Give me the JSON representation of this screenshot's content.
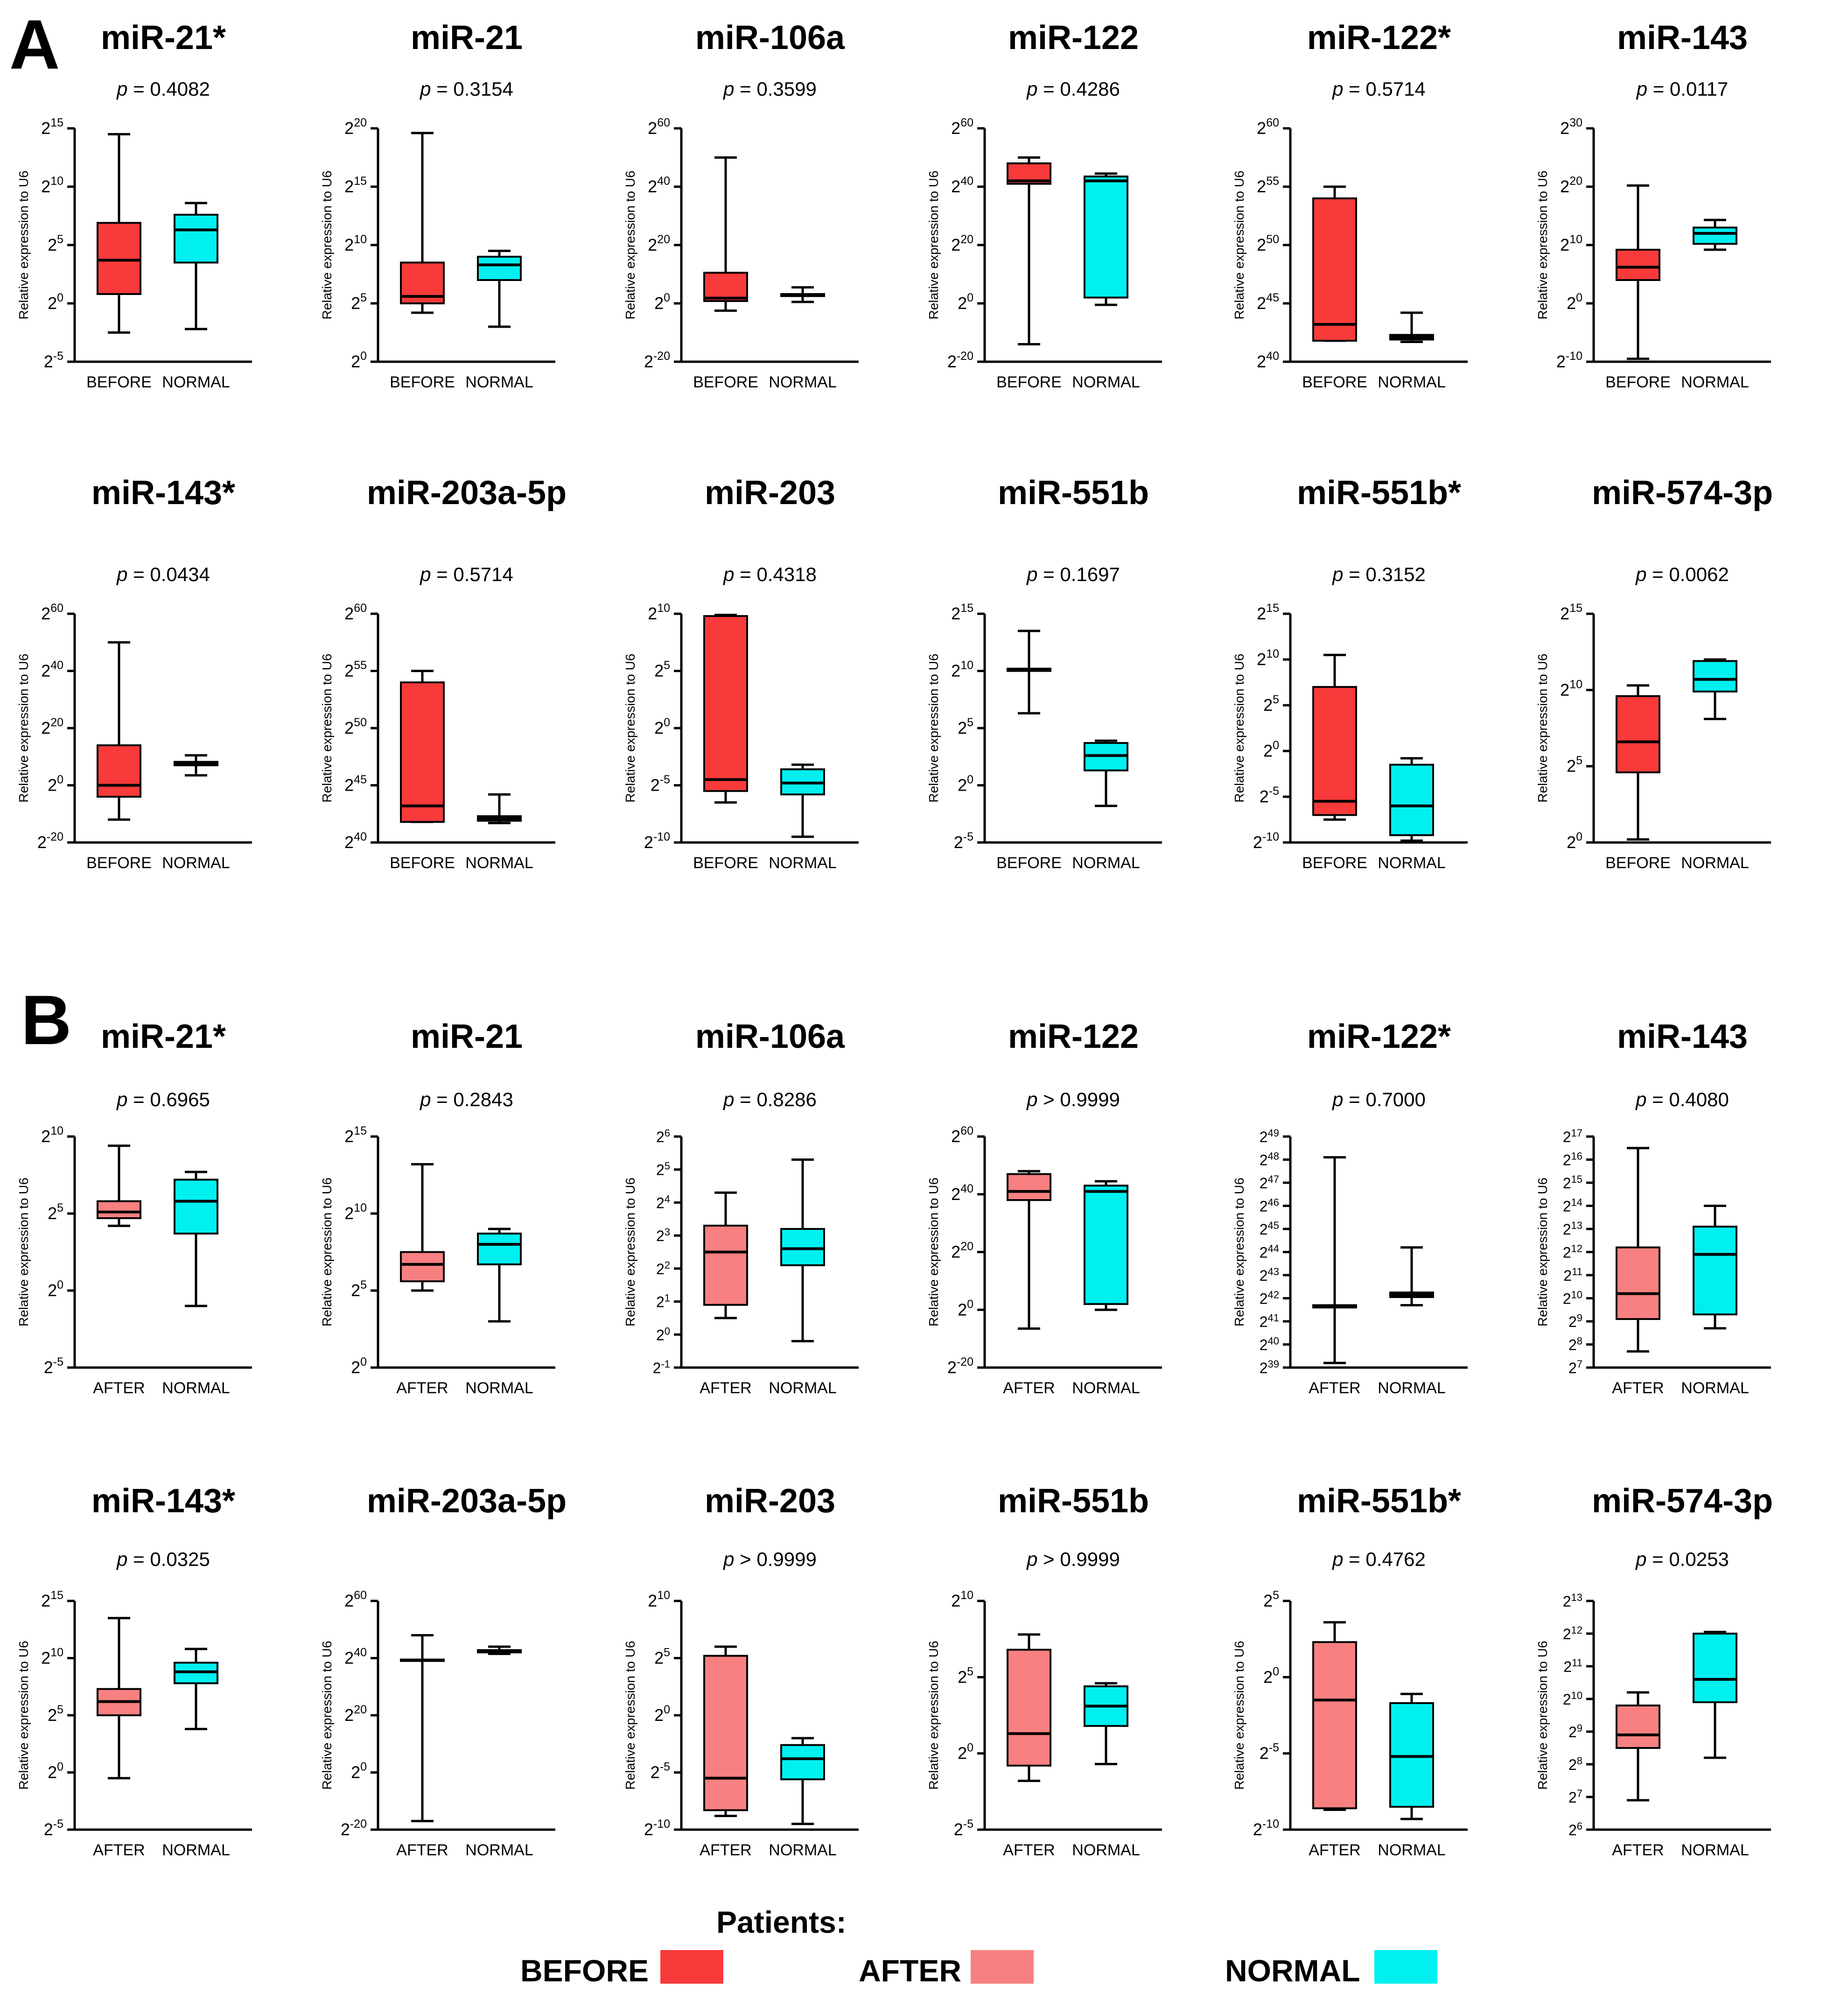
{
  "panel_labels": {
    "A": "A",
    "B": "B"
  },
  "y_axis_label": "Relative expression to U6",
  "legend": {
    "title": "Patients:",
    "items": [
      {
        "label": "BEFORE",
        "color": "#f83a3a"
      },
      {
        "label": "AFTER",
        "color": "#f88080"
      },
      {
        "label": "NORMAL",
        "color": "#00f0f0"
      }
    ]
  },
  "chart_data": [
    {
      "panel": "A",
      "type": "boxplot",
      "title": "miR-21*",
      "p_text": "p = 0.4082",
      "y_ticks": [
        -5,
        0,
        5,
        10,
        15
      ],
      "ylim": [
        -5,
        15
      ],
      "groups": [
        {
          "name": "BEFORE",
          "color": "#f83a3a",
          "min": -2.5,
          "q1": 0.8,
          "median": 3.7,
          "q3": 6.9,
          "max": 14.5
        },
        {
          "name": "NORMAL",
          "color": "#00f0f0",
          "min": -2.2,
          "q1": 3.5,
          "median": 6.3,
          "q3": 7.6,
          "max": 8.6
        }
      ]
    },
    {
      "panel": "A",
      "type": "boxplot",
      "title": "miR-21",
      "p_text": "p = 0.3154",
      "y_ticks": [
        0,
        5,
        10,
        15,
        20
      ],
      "ylim": [
        0,
        20
      ],
      "groups": [
        {
          "name": "BEFORE",
          "color": "#f83a3a",
          "min": 4.2,
          "q1": 5.0,
          "median": 5.6,
          "q3": 8.5,
          "max": 19.6
        },
        {
          "name": "NORMAL",
          "color": "#00f0f0",
          "min": 3.0,
          "q1": 7.0,
          "median": 8.3,
          "q3": 9.0,
          "max": 9.5
        }
      ]
    },
    {
      "panel": "A",
      "type": "boxplot",
      "title": "miR-106a",
      "p_text": "p = 0.3599",
      "y_ticks": [
        -20,
        0,
        20,
        40,
        60
      ],
      "ylim": [
        -20,
        60
      ],
      "groups": [
        {
          "name": "BEFORE",
          "color": "#f83a3a",
          "min": -2.5,
          "q1": 0.8,
          "median": 1.8,
          "q3": 10.5,
          "max": 50.0
        },
        {
          "name": "NORMAL",
          "color": "#00f0f0",
          "min": 0.5,
          "q1": 2.5,
          "median": 2.8,
          "q3": 3.2,
          "max": 5.5
        }
      ]
    },
    {
      "panel": "A",
      "type": "boxplot",
      "title": "miR-122",
      "p_text": "p = 0.4286",
      "y_ticks": [
        -20,
        0,
        20,
        40,
        60
      ],
      "ylim": [
        -20,
        60
      ],
      "groups": [
        {
          "name": "BEFORE",
          "color": "#f83a3a",
          "min": -14.0,
          "q1": 41.0,
          "median": 42.0,
          "q3": 48.0,
          "max": 50.0
        },
        {
          "name": "NORMAL",
          "color": "#00f0f0",
          "min": -0.5,
          "q1": 2.0,
          "median": 42.0,
          "q3": 43.5,
          "max": 44.5
        }
      ]
    },
    {
      "panel": "A",
      "type": "boxplot",
      "title": "miR-122*",
      "p_text": "p = 0.5714",
      "y_ticks": [
        40,
        45,
        50,
        55,
        60
      ],
      "ylim": [
        40,
        60
      ],
      "groups": [
        {
          "name": "BEFORE",
          "color": "#f83a3a",
          "min": 41.8,
          "q1": 41.8,
          "median": 43.2,
          "q3": 54.0,
          "max": 55.0
        },
        {
          "name": "NORMAL",
          "color": "#00f0f0",
          "min": 41.7,
          "q1": 41.9,
          "median": 42.1,
          "q3": 42.3,
          "max": 44.2
        }
      ]
    },
    {
      "panel": "A",
      "type": "boxplot",
      "title": "miR-143",
      "p_text": "p = 0.0117",
      "y_ticks": [
        -10,
        0,
        10,
        20,
        30
      ],
      "ylim": [
        -10,
        30
      ],
      "groups": [
        {
          "name": "BEFORE",
          "color": "#f83a3a",
          "min": -9.5,
          "q1": 4.0,
          "median": 6.2,
          "q3": 9.2,
          "max": 20.2
        },
        {
          "name": "NORMAL",
          "color": "#00f0f0",
          "min": 9.2,
          "q1": 10.2,
          "median": 12.0,
          "q3": 13.0,
          "max": 14.3
        }
      ]
    },
    {
      "panel": "A",
      "type": "boxplot",
      "title": "miR-143*",
      "p_text": "p = 0.0434",
      "y_ticks": [
        -20,
        0,
        20,
        40,
        60
      ],
      "ylim": [
        -20,
        60
      ],
      "groups": [
        {
          "name": "BEFORE",
          "color": "#f83a3a",
          "min": -12.0,
          "q1": -4.0,
          "median": 0.0,
          "q3": 14.0,
          "max": 50.0
        },
        {
          "name": "NORMAL",
          "color": "#00f0f0",
          "min": 3.5,
          "q1": 7.0,
          "median": 7.5,
          "q3": 8.2,
          "max": 10.5
        }
      ]
    },
    {
      "panel": "A",
      "type": "boxplot",
      "title": "miR-203a-5p",
      "p_text": "p = 0.5714",
      "y_ticks": [
        40,
        45,
        50,
        55,
        60
      ],
      "ylim": [
        40,
        60
      ],
      "groups": [
        {
          "name": "BEFORE",
          "color": "#f83a3a",
          "min": 41.8,
          "q1": 41.8,
          "median": 43.2,
          "q3": 54.0,
          "max": 55.0
        },
        {
          "name": "NORMAL",
          "color": "#00f0f0",
          "min": 41.7,
          "q1": 41.9,
          "median": 42.1,
          "q3": 42.3,
          "max": 44.2
        }
      ]
    },
    {
      "panel": "A",
      "type": "boxplot",
      "title": "miR-203",
      "p_text": "p = 0.4318",
      "y_ticks": [
        -10,
        -5,
        0,
        5,
        10
      ],
      "ylim": [
        -10,
        10
      ],
      "groups": [
        {
          "name": "BEFORE",
          "color": "#f83a3a",
          "min": -6.5,
          "q1": -5.5,
          "median": -4.5,
          "q3": 9.8,
          "max": 9.9
        },
        {
          "name": "NORMAL",
          "color": "#00f0f0",
          "min": -9.5,
          "q1": -5.8,
          "median": -4.8,
          "q3": -3.6,
          "max": -3.2
        }
      ]
    },
    {
      "panel": "A",
      "type": "boxplot",
      "title": "miR-551b",
      "p_text": "p = 0.1697",
      "y_ticks": [
        -5,
        0,
        5,
        10,
        15
      ],
      "ylim": [
        -5,
        15
      ],
      "groups": [
        {
          "name": "BEFORE",
          "color": "#f83a3a",
          "min": 6.3,
          "q1": 10.0,
          "median": 10.1,
          "q3": 10.2,
          "max": 13.5
        },
        {
          "name": "NORMAL",
          "color": "#00f0f0",
          "min": -1.8,
          "q1": 1.3,
          "median": 2.6,
          "q3": 3.7,
          "max": 3.9
        }
      ]
    },
    {
      "panel": "A",
      "type": "boxplot",
      "title": "miR-551b*",
      "p_text": "p = 0.3152",
      "y_ticks": [
        -10,
        -5,
        0,
        5,
        10,
        15
      ],
      "ylim": [
        -10,
        15
      ],
      "groups": [
        {
          "name": "BEFORE",
          "color": "#f83a3a",
          "min": -7.5,
          "q1": -7.0,
          "median": -5.5,
          "q3": 7.0,
          "max": 10.5
        },
        {
          "name": "NORMAL",
          "color": "#00f0f0",
          "min": -9.8,
          "q1": -9.2,
          "median": -6.0,
          "q3": -1.5,
          "max": -0.8
        }
      ]
    },
    {
      "panel": "A",
      "type": "boxplot",
      "title": "miR-574-3p",
      "p_text": "p = 0.0062",
      "y_ticks": [
        0,
        5,
        10,
        15
      ],
      "ylim": [
        0,
        15
      ],
      "groups": [
        {
          "name": "BEFORE",
          "color": "#f83a3a",
          "min": 0.2,
          "q1": 4.6,
          "median": 6.6,
          "q3": 9.6,
          "max": 10.3
        },
        {
          "name": "NORMAL",
          "color": "#00f0f0",
          "min": 8.1,
          "q1": 9.9,
          "median": 10.7,
          "q3": 11.9,
          "max": 12.0
        }
      ]
    },
    {
      "panel": "B",
      "type": "boxplot",
      "title": "miR-21*",
      "p_text": "p = 0.6965",
      "y_ticks": [
        -5,
        0,
        5,
        10
      ],
      "ylim": [
        -5,
        10
      ],
      "groups": [
        {
          "name": "AFTER",
          "color": "#f88080",
          "min": 4.2,
          "q1": 4.7,
          "median": 5.1,
          "q3": 5.8,
          "max": 9.4
        },
        {
          "name": "NORMAL",
          "color": "#00f0f0",
          "min": -1.0,
          "q1": 3.7,
          "median": 5.8,
          "q3": 7.2,
          "max": 7.7
        }
      ]
    },
    {
      "panel": "B",
      "type": "boxplot",
      "title": "miR-21",
      "p_text": "p = 0.2843",
      "y_ticks": [
        0,
        5,
        10,
        15
      ],
      "ylim": [
        0,
        15
      ],
      "groups": [
        {
          "name": "AFTER",
          "color": "#f88080",
          "min": 5.0,
          "q1": 5.6,
          "median": 6.7,
          "q3": 7.5,
          "max": 13.2
        },
        {
          "name": "NORMAL",
          "color": "#00f0f0",
          "min": 3.0,
          "q1": 6.7,
          "median": 8.0,
          "q3": 8.7,
          "max": 9.0
        }
      ]
    },
    {
      "panel": "B",
      "type": "boxplot",
      "title": "miR-106a",
      "p_text": "p = 0.8286",
      "y_ticks": [
        -1,
        0,
        1,
        2,
        3,
        4,
        5,
        6
      ],
      "ylim": [
        -1,
        6
      ],
      "groups": [
        {
          "name": "AFTER",
          "color": "#f88080",
          "min": 0.5,
          "q1": 0.9,
          "median": 2.5,
          "q3": 3.3,
          "max": 4.3
        },
        {
          "name": "NORMAL",
          "color": "#00f0f0",
          "min": -0.2,
          "q1": 2.1,
          "median": 2.6,
          "q3": 3.2,
          "max": 5.3
        }
      ]
    },
    {
      "panel": "B",
      "type": "boxplot",
      "title": "miR-122",
      "p_text": "p > 0.9999",
      "y_ticks": [
        -20,
        0,
        20,
        40,
        60
      ],
      "ylim": [
        -20,
        60
      ],
      "groups": [
        {
          "name": "AFTER",
          "color": "#f88080",
          "min": -6.5,
          "q1": 38.0,
          "median": 41.0,
          "q3": 47.0,
          "max": 48.0
        },
        {
          "name": "NORMAL",
          "color": "#00f0f0",
          "min": 0.0,
          "q1": 2.0,
          "median": 41.0,
          "q3": 43.0,
          "max": 44.5
        }
      ]
    },
    {
      "panel": "B",
      "type": "boxplot",
      "title": "miR-122*",
      "p_text": "p = 0.7000",
      "y_ticks": [
        39,
        40,
        41,
        42,
        43,
        44,
        45,
        46,
        47,
        48,
        49
      ],
      "ylim": [
        39,
        49
      ],
      "groups": [
        {
          "name": "AFTER",
          "color": "#f88080",
          "min": 39.2,
          "q1": 41.6,
          "median": 41.65,
          "q3": 41.7,
          "max": 48.1
        },
        {
          "name": "NORMAL",
          "color": "#00f0f0",
          "min": 41.7,
          "q1": 42.05,
          "median": 42.15,
          "q3": 42.25,
          "max": 44.2
        }
      ]
    },
    {
      "panel": "B",
      "type": "boxplot",
      "title": "miR-143",
      "p_text": "p = 0.4080",
      "y_ticks": [
        7,
        8,
        9,
        10,
        11,
        12,
        13,
        14,
        15,
        16,
        17
      ],
      "ylim": [
        7,
        17
      ],
      "groups": [
        {
          "name": "AFTER",
          "color": "#f88080",
          "min": 7.7,
          "q1": 9.1,
          "median": 10.2,
          "q3": 12.2,
          "max": 16.5
        },
        {
          "name": "NORMAL",
          "color": "#00f0f0",
          "min": 8.7,
          "q1": 9.3,
          "median": 11.9,
          "q3": 13.1,
          "max": 14.0
        }
      ]
    },
    {
      "panel": "B",
      "type": "boxplot",
      "title": "miR-143*",
      "p_text": "p = 0.0325",
      "y_ticks": [
        -5,
        0,
        5,
        10,
        15
      ],
      "ylim": [
        -5,
        15
      ],
      "groups": [
        {
          "name": "AFTER",
          "color": "#f88080",
          "min": -0.5,
          "q1": 5.0,
          "median": 6.2,
          "q3": 7.3,
          "max": 13.5
        },
        {
          "name": "NORMAL",
          "color": "#00f0f0",
          "min": 3.8,
          "q1": 7.8,
          "median": 8.8,
          "q3": 9.6,
          "max": 10.8
        }
      ]
    },
    {
      "panel": "B",
      "type": "boxplot",
      "title": "miR-203a-5p",
      "p_text": "",
      "y_ticks": [
        -20,
        0,
        20,
        40,
        60
      ],
      "ylim": [
        -20,
        60
      ],
      "groups": [
        {
          "name": "AFTER",
          "color": "#f88080",
          "min": -17.0,
          "q1": 39.0,
          "median": 39.2,
          "q3": 39.5,
          "max": 48.0
        },
        {
          "name": "NORMAL",
          "color": "#00f0f0",
          "min": 41.5,
          "q1": 42.0,
          "median": 42.4,
          "q3": 42.8,
          "max": 44.0
        }
      ]
    },
    {
      "panel": "B",
      "type": "boxplot",
      "title": "miR-203",
      "p_text": "p > 0.9999",
      "y_ticks": [
        -10,
        -5,
        0,
        5,
        10
      ],
      "ylim": [
        -10,
        10
      ],
      "groups": [
        {
          "name": "AFTER",
          "color": "#f88080",
          "min": -8.8,
          "q1": -8.3,
          "median": -5.5,
          "q3": 5.2,
          "max": 6.0
        },
        {
          "name": "NORMAL",
          "color": "#00f0f0",
          "min": -9.5,
          "q1": -5.6,
          "median": -3.8,
          "q3": -2.6,
          "max": -2.0
        }
      ]
    },
    {
      "panel": "B",
      "type": "boxplot",
      "title": "miR-551b",
      "p_text": "p > 0.9999",
      "y_ticks": [
        -5,
        0,
        5,
        10
      ],
      "ylim": [
        -5,
        10
      ],
      "groups": [
        {
          "name": "AFTER",
          "color": "#f88080",
          "min": -1.8,
          "q1": -0.8,
          "median": 1.3,
          "q3": 6.8,
          "max": 7.8
        },
        {
          "name": "NORMAL",
          "color": "#00f0f0",
          "min": -0.7,
          "q1": 1.8,
          "median": 3.1,
          "q3": 4.4,
          "max": 4.6
        }
      ]
    },
    {
      "panel": "B",
      "type": "boxplot",
      "title": "miR-551b*",
      "p_text": "p = 0.4762",
      "y_ticks": [
        -10,
        -5,
        0,
        5
      ],
      "ylim": [
        -10,
        5
      ],
      "groups": [
        {
          "name": "AFTER",
          "color": "#f88080",
          "min": -8.7,
          "q1": -8.6,
          "median": -1.5,
          "q3": 2.3,
          "max": 3.6
        },
        {
          "name": "NORMAL",
          "color": "#00f0f0",
          "min": -9.3,
          "q1": -8.5,
          "median": -5.2,
          "q3": -1.7,
          "max": -1.1
        }
      ]
    },
    {
      "panel": "B",
      "type": "boxplot",
      "title": "miR-574-3p",
      "p_text": "p = 0.0253",
      "y_ticks": [
        6,
        7,
        8,
        9,
        10,
        11,
        12,
        13
      ],
      "ylim": [
        6,
        13
      ],
      "groups": [
        {
          "name": "AFTER",
          "color": "#f88080",
          "min": 6.9,
          "q1": 8.5,
          "median": 8.9,
          "q3": 9.8,
          "max": 10.2
        },
        {
          "name": "NORMAL",
          "color": "#00f0f0",
          "min": 8.2,
          "q1": 9.9,
          "median": 10.6,
          "q3": 12.0,
          "max": 12.05
        }
      ]
    }
  ]
}
